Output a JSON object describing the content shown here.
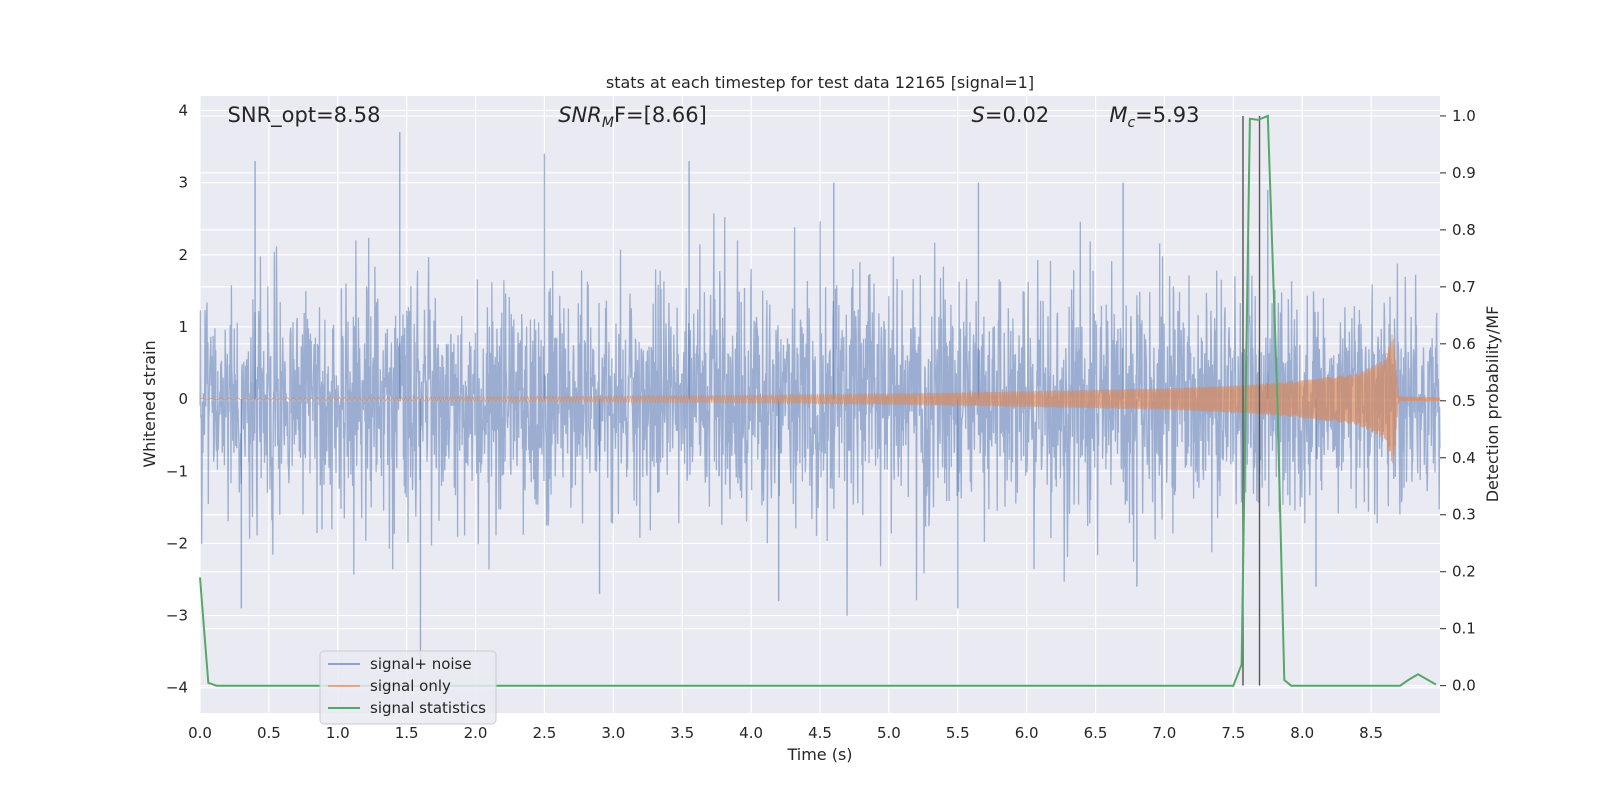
{
  "chart_data": {
    "type": "line",
    "title": "stats at each timestep for test data 12165 [signal=1]",
    "xlabel": "Time (s)",
    "ylabel": "Whitened strain",
    "y2label": "Detection probability/MF",
    "xlim": [
      0.0,
      9.0
    ],
    "ylim": [
      -4.35,
      4.2
    ],
    "y2lim": [
      -0.048,
      1.035
    ],
    "xticks": [
      "0.0",
      "0.5",
      "1.0",
      "1.5",
      "2.0",
      "2.5",
      "3.0",
      "3.5",
      "4.0",
      "4.5",
      "5.0",
      "5.5",
      "6.0",
      "6.5",
      "7.0",
      "7.5",
      "8.0",
      "8.5"
    ],
    "xtick_values": [
      0.0,
      0.5,
      1.0,
      1.5,
      2.0,
      2.5,
      3.0,
      3.5,
      4.0,
      4.5,
      5.0,
      5.5,
      6.0,
      6.5,
      7.0,
      7.5,
      8.0,
      8.5
    ],
    "yticks": [
      "4",
      "3",
      "2",
      "1",
      "0",
      "−1",
      "−2",
      "−3",
      "−4"
    ],
    "ytick_values": [
      4,
      3,
      2,
      1,
      0,
      -1,
      -2,
      -3,
      -4
    ],
    "y2ticks": [
      "1.0",
      "0.9",
      "0.8",
      "0.7",
      "0.6",
      "0.5",
      "0.4",
      "0.3",
      "0.2",
      "0.1",
      "0.0"
    ],
    "y2tick_values": [
      1.0,
      0.9,
      0.8,
      0.7,
      0.6,
      0.5,
      0.4,
      0.3,
      0.2,
      0.1,
      0.0
    ],
    "grid": true,
    "legend_position": "lower-left",
    "annotations": [
      {
        "text": "SNR_opt=8.58",
        "x": 0.2
      },
      {
        "math": "SNR",
        "sub": "M",
        "rest": "F=[8.66]",
        "x": 2.6
      },
      {
        "math": "S",
        "rest": "=0.02",
        "x": 5.6
      },
      {
        "math": "M",
        "sub": "c",
        "rest": "=5.93",
        "x": 6.6
      }
    ],
    "vlines": [
      7.57,
      7.69
    ],
    "series": [
      {
        "name": "signal+ noise",
        "color": "#4c72b0",
        "axis": "left",
        "description": "whitened noisy strain, roughly within ±2, peaks up to ±3.7",
        "noise_amplitude": 0.8,
        "spike_max": [
          3.3,
          3.7,
          3.4,
          3.3,
          3.0,
          3.0,
          3.0,
          2.9
        ],
        "spike_min": [
          -2.9,
          -3.6,
          -2.7,
          -2.8,
          -2.9,
          -2.6,
          -2.6
        ]
      },
      {
        "name": "signal only",
        "color": "#dd8452",
        "axis": "left",
        "description": "chirp growing in amplitude, merger near t=8.65",
        "envelope": {
          "t": [
            0.0,
            4.0,
            5.5,
            7.0,
            7.6,
            8.0,
            8.4,
            8.6,
            8.66,
            8.7,
            9.0
          ],
          "amp": [
            0.01,
            0.05,
            0.09,
            0.15,
            0.2,
            0.26,
            0.36,
            0.55,
            0.95,
            0.03,
            0.02
          ]
        }
      },
      {
        "name": "signal statistics",
        "color": "#55a868",
        "axis": "right",
        "points": {
          "x": [
            0.0,
            0.06,
            0.12,
            7.5,
            7.56,
            7.62,
            7.68,
            7.75,
            7.82,
            7.87,
            7.92,
            8.6,
            8.65,
            8.71,
            8.77,
            8.84,
            8.97
          ],
          "y": [
            0.19,
            0.005,
            0.0,
            0.0,
            0.037,
            0.995,
            0.993,
            1.0,
            0.5,
            0.01,
            0.0,
            0.0,
            0.0,
            0.0,
            0.01,
            0.02,
            0.002
          ]
        }
      }
    ]
  }
}
